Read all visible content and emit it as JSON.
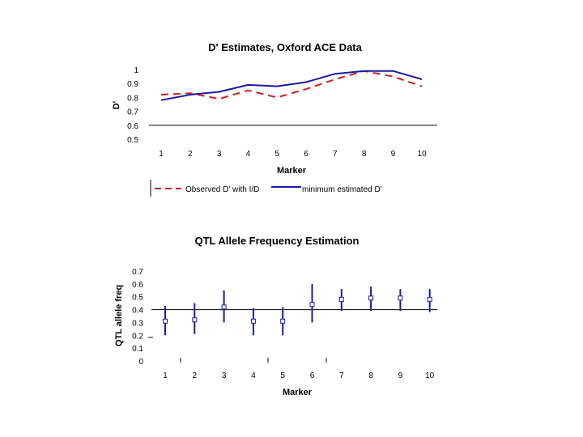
{
  "chart_data": [
    {
      "type": "line",
      "title": "D' Estimates, Oxford ACE Data",
      "xlabel": "Marker",
      "ylabel": "D'",
      "categories": [
        "1",
        "2",
        "3",
        "4",
        "5",
        "6",
        "7",
        "8",
        "9",
        "10"
      ],
      "yticks": [
        "1",
        "0.9",
        "0.8",
        "0.7",
        "0.6",
        "0.5"
      ],
      "ylim": [
        0.5,
        1.0
      ],
      "reference_line": 0.6,
      "series": [
        {
          "name": "Observed D' with I/D",
          "color": "#cc2222",
          "style": "dashed",
          "values": [
            0.82,
            0.83,
            0.79,
            0.85,
            0.8,
            0.86,
            0.93,
            0.99,
            0.95,
            0.88
          ]
        },
        {
          "name": "minimum estimated D'",
          "color": "#1a1aa6",
          "style": "solid",
          "values": [
            0.78,
            0.82,
            0.84,
            0.89,
            0.88,
            0.91,
            0.97,
            0.99,
            0.99,
            0.93
          ]
        }
      ],
      "legend": {
        "position": "bottom",
        "items": [
          "Observed D' with I/D",
          "minimum estimated D'"
        ]
      }
    },
    {
      "type": "errorbar",
      "title": "QTL Allele Frequency Estimation",
      "xlabel": "Marker",
      "ylabel": "QTL allele freq",
      "categories": [
        "1",
        "2",
        "3",
        "4",
        "5",
        "6",
        "7",
        "8",
        "9",
        "10"
      ],
      "yticks": [
        "0.7",
        "0.6",
        "0.5",
        "0.4",
        "0.3",
        "0.2",
        "0.1",
        "0"
      ],
      "ylim": [
        0,
        0.7
      ],
      "reference_line": 0.4,
      "color": "#1a1aa6",
      "values": [
        0.31,
        0.32,
        0.42,
        0.31,
        0.31,
        0.44,
        0.48,
        0.49,
        0.49,
        0.48
      ],
      "lower": [
        0.2,
        0.21,
        0.3,
        0.2,
        0.2,
        0.3,
        0.39,
        0.39,
        0.39,
        0.38
      ],
      "upper": [
        0.43,
        0.45,
        0.55,
        0.41,
        0.42,
        0.6,
        0.56,
        0.58,
        0.56,
        0.56
      ]
    }
  ]
}
